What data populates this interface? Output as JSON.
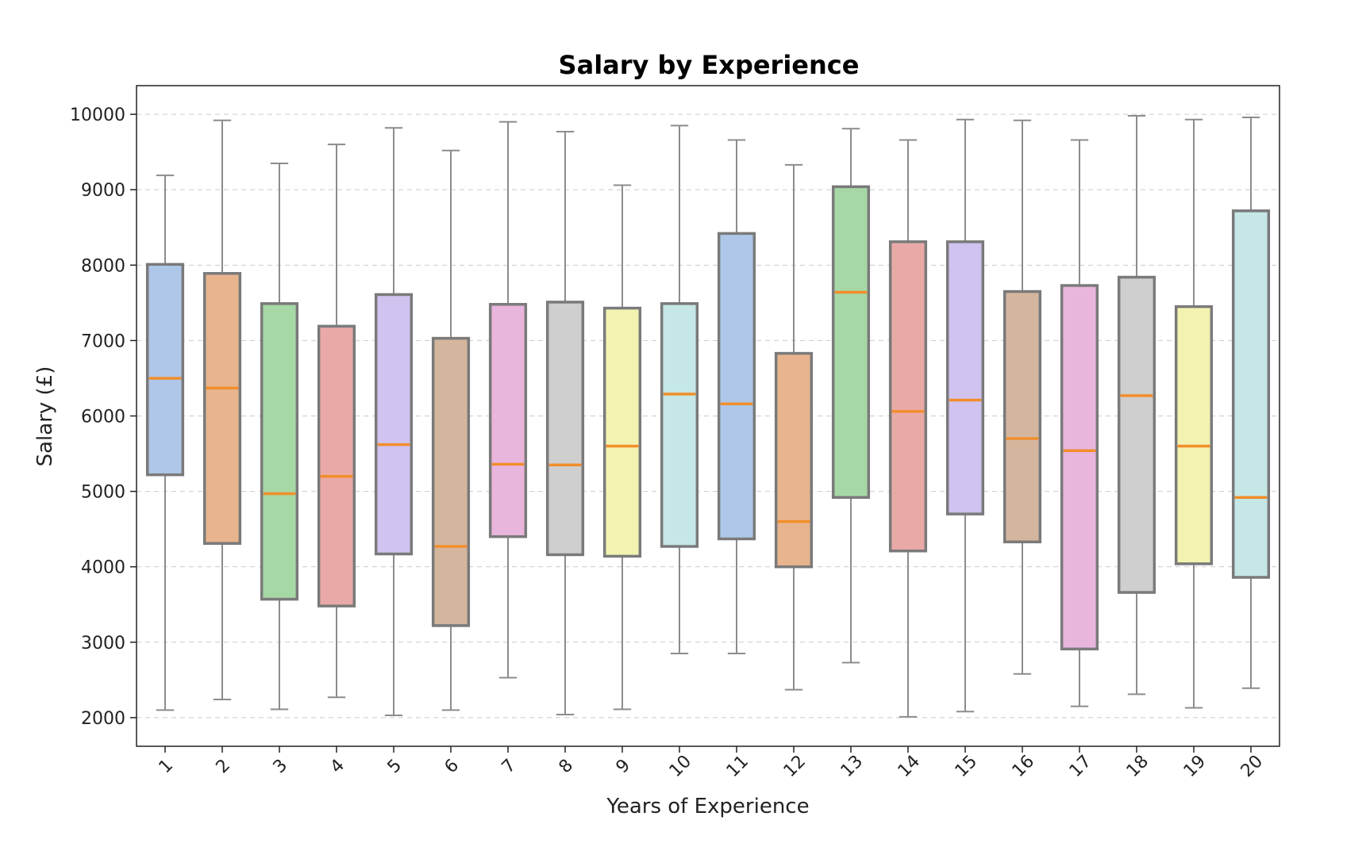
{
  "chart_data": {
    "type": "box",
    "title": "Salary by Experience",
    "xlabel": "Years of Experience",
    "ylabel": "Salary (£)",
    "ylim": [
      1620,
      10380
    ],
    "yticks": [
      2000,
      3000,
      4000,
      5000,
      6000,
      7000,
      8000,
      9000,
      10000
    ],
    "grid": "y-dashed",
    "categories": [
      "1",
      "2",
      "3",
      "4",
      "5",
      "6",
      "7",
      "8",
      "9",
      "10",
      "11",
      "12",
      "13",
      "14",
      "15",
      "16",
      "17",
      "18",
      "19",
      "20"
    ],
    "boxes": [
      {
        "category": "1",
        "whisker_low": 2100,
        "q1": 5220,
        "median": 6500,
        "q3": 8010,
        "whisker_high": 9190
      },
      {
        "category": "2",
        "whisker_low": 2240,
        "q1": 4310,
        "median": 6370,
        "q3": 7890,
        "whisker_high": 9920
      },
      {
        "category": "3",
        "whisker_low": 2110,
        "q1": 3570,
        "median": 4970,
        "q3": 7490,
        "whisker_high": 9350
      },
      {
        "category": "4",
        "whisker_low": 2270,
        "q1": 3480,
        "median": 5200,
        "q3": 7190,
        "whisker_high": 9600
      },
      {
        "category": "5",
        "whisker_low": 2030,
        "q1": 4170,
        "median": 5620,
        "q3": 7610,
        "whisker_high": 9820
      },
      {
        "category": "6",
        "whisker_low": 2100,
        "q1": 3220,
        "median": 4270,
        "q3": 7030,
        "whisker_high": 9520
      },
      {
        "category": "7",
        "whisker_low": 2530,
        "q1": 4400,
        "median": 5360,
        "q3": 7480,
        "whisker_high": 9900
      },
      {
        "category": "8",
        "whisker_low": 2040,
        "q1": 4160,
        "median": 5350,
        "q3": 7510,
        "whisker_high": 9770
      },
      {
        "category": "9",
        "whisker_low": 2110,
        "q1": 4140,
        "median": 5600,
        "q3": 7430,
        "whisker_high": 9060
      },
      {
        "category": "10",
        "whisker_low": 2850,
        "q1": 4270,
        "median": 6290,
        "q3": 7490,
        "whisker_high": 9850
      },
      {
        "category": "11",
        "whisker_low": 2850,
        "q1": 4370,
        "median": 6160,
        "q3": 8420,
        "whisker_high": 9660
      },
      {
        "category": "12",
        "whisker_low": 2370,
        "q1": 4000,
        "median": 4600,
        "q3": 6830,
        "whisker_high": 9330
      },
      {
        "category": "13",
        "whisker_low": 2730,
        "q1": 4920,
        "median": 7640,
        "q3": 9040,
        "whisker_high": 9810
      },
      {
        "category": "14",
        "whisker_low": 2010,
        "q1": 4210,
        "median": 6060,
        "q3": 8310,
        "whisker_high": 9660
      },
      {
        "category": "15",
        "whisker_low": 2080,
        "q1": 4700,
        "median": 6210,
        "q3": 8310,
        "whisker_high": 9930
      },
      {
        "category": "16",
        "whisker_low": 2580,
        "q1": 4330,
        "median": 5700,
        "q3": 7650,
        "whisker_high": 9920
      },
      {
        "category": "17",
        "whisker_low": 2150,
        "q1": 2910,
        "median": 5540,
        "q3": 7730,
        "whisker_high": 9660
      },
      {
        "category": "18",
        "whisker_low": 2310,
        "q1": 3660,
        "median": 6270,
        "q3": 7840,
        "whisker_high": 9980
      },
      {
        "category": "19",
        "whisker_low": 2130,
        "q1": 4040,
        "median": 5600,
        "q3": 7450,
        "whisker_high": 9930
      },
      {
        "category": "20",
        "whisker_low": 2390,
        "q1": 3860,
        "median": 4920,
        "q3": 8720,
        "whisker_high": 9960
      }
    ],
    "box_colors": [
      "#aec7e8",
      "#e7b48e",
      "#a6d8a6",
      "#e9aaa7",
      "#d0c3ef",
      "#d4b69f",
      "#e8b5dd",
      "#cfcfcf",
      "#f3f3b1",
      "#c5e7e6"
    ],
    "median_color": "#f28e2b",
    "box_edge_color": "#7a7a7a",
    "whisker_color": "#8c8c8c"
  }
}
